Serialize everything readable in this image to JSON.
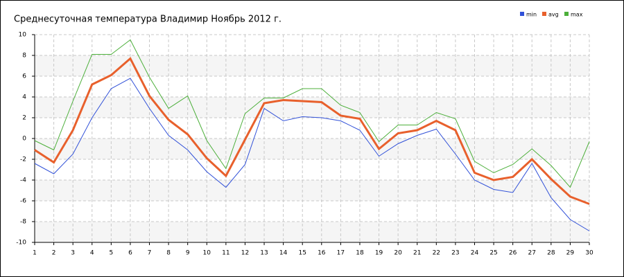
{
  "chart_data": {
    "type": "line",
    "title": "Среднесуточная температура Владимир  Ноябрь 2012 г.",
    "x": [
      1,
      2,
      3,
      4,
      5,
      6,
      7,
      8,
      9,
      10,
      11,
      12,
      13,
      14,
      15,
      16,
      17,
      18,
      19,
      20,
      21,
      22,
      23,
      24,
      25,
      26,
      27,
      28,
      29,
      30
    ],
    "xlim": [
      1,
      30
    ],
    "ylim": [
      -10,
      10
    ],
    "yticks": [
      -10,
      -8,
      -6,
      -4,
      -2,
      0,
      2,
      4,
      6,
      8,
      10
    ],
    "grid": true,
    "series": [
      {
        "name": "min",
        "color": "#3050d8",
        "values": [
          -2.4,
          -3.4,
          -1.5,
          2.0,
          4.8,
          5.8,
          2.9,
          0.3,
          -1.1,
          -3.2,
          -4.7,
          -2.5,
          2.9,
          1.7,
          2.1,
          2.0,
          1.7,
          0.8,
          -1.7,
          -0.5,
          0.3,
          0.9,
          -1.5,
          -4.0,
          -4.9,
          -5.2,
          -2.4,
          -5.7,
          -7.8,
          -8.9
        ]
      },
      {
        "name": "avg",
        "color": "#e8602c",
        "values": [
          -1.1,
          -2.3,
          0.8,
          5.2,
          6.1,
          7.7,
          4.1,
          1.8,
          0.4,
          -1.9,
          -3.6,
          -0.1,
          3.4,
          3.7,
          3.6,
          3.5,
          2.2,
          1.9,
          -1.0,
          0.5,
          0.8,
          1.7,
          0.8,
          -3.3,
          -4.0,
          -3.7,
          -2.0,
          -3.9,
          -5.6,
          -6.3
        ]
      },
      {
        "name": "max",
        "color": "#4caf3a",
        "values": [
          -0.2,
          -1.1,
          3.6,
          8.1,
          8.1,
          9.5,
          5.9,
          2.9,
          4.1,
          -0.2,
          -2.9,
          2.4,
          3.9,
          3.9,
          4.8,
          4.8,
          3.2,
          2.5,
          -0.3,
          1.3,
          1.3,
          2.5,
          1.9,
          -2.2,
          -3.3,
          -2.5,
          -1.0,
          -2.6,
          -4.7,
          -0.3
        ]
      }
    ]
  }
}
